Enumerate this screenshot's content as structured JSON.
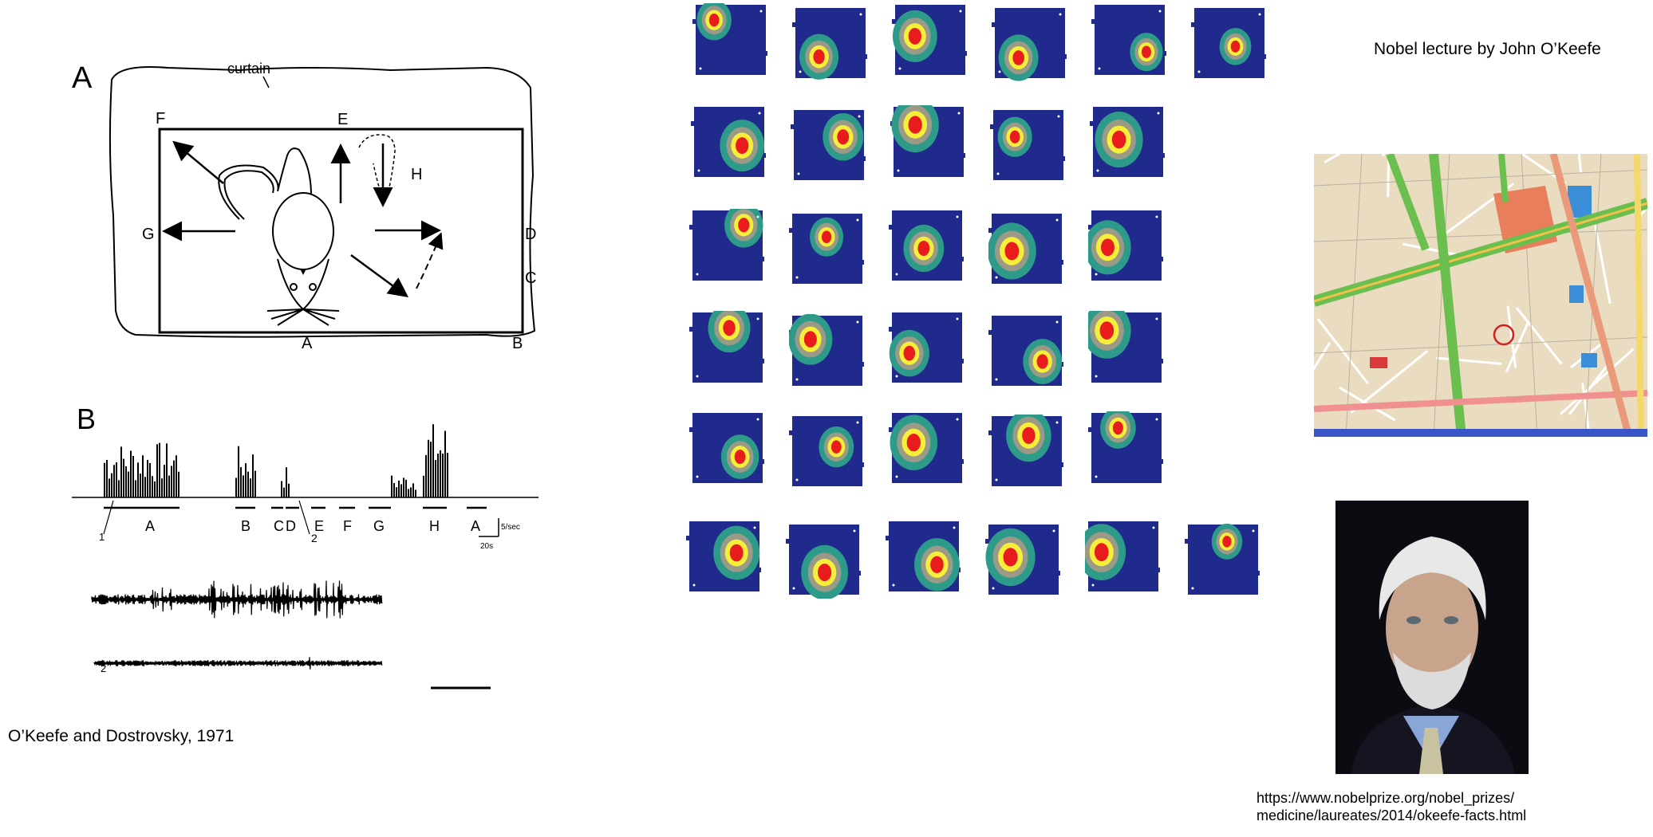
{
  "figure_a": {
    "panel_label": "A",
    "curtain_label": "curtain",
    "point_labels": [
      "F",
      "E",
      "H",
      "G",
      "D",
      "C",
      "A",
      "B"
    ]
  },
  "figure_b": {
    "panel_label": "B",
    "segment_labels": [
      "A",
      "B",
      "C",
      "D",
      "E",
      "F",
      "G",
      "H",
      "A"
    ],
    "marker_1": "1",
    "marker_2": "2",
    "scale_y": "5/sec",
    "scale_x": "20s",
    "trace_1_label": "1",
    "trace_2_label": "2"
  },
  "citation_left": "O’Keefe and Dostrovsky, 1971",
  "citation_top_right": "Nobel lecture by John O’Keefe",
  "url_line1": "https://www.nobelprize.org/nobel_prizes/",
  "url_line2": "medicine/laureates/2014/okeefe-facts.html",
  "heatmap_grid": {
    "rows": [
      6,
      5,
      5,
      5,
      5,
      6
    ],
    "colors": {
      "background": "#1f2a8c",
      "teal": "#2e9a8a",
      "gray": "#9a9a86",
      "yellow": "#f7ee3a",
      "red": "#e81c1c"
    }
  },
  "map_colors": {
    "road_green": "#6bbf4e",
    "land": "#e9dcc0",
    "euston_block": "#e97e5c",
    "water": "#3a8fd8",
    "bottom_bar": "#3a55c8"
  },
  "portrait_colors": {
    "background": "#0b0b12",
    "hair": "#e8e8e8",
    "skin": "#c9a48c",
    "shirt": "#8aa6d6"
  }
}
